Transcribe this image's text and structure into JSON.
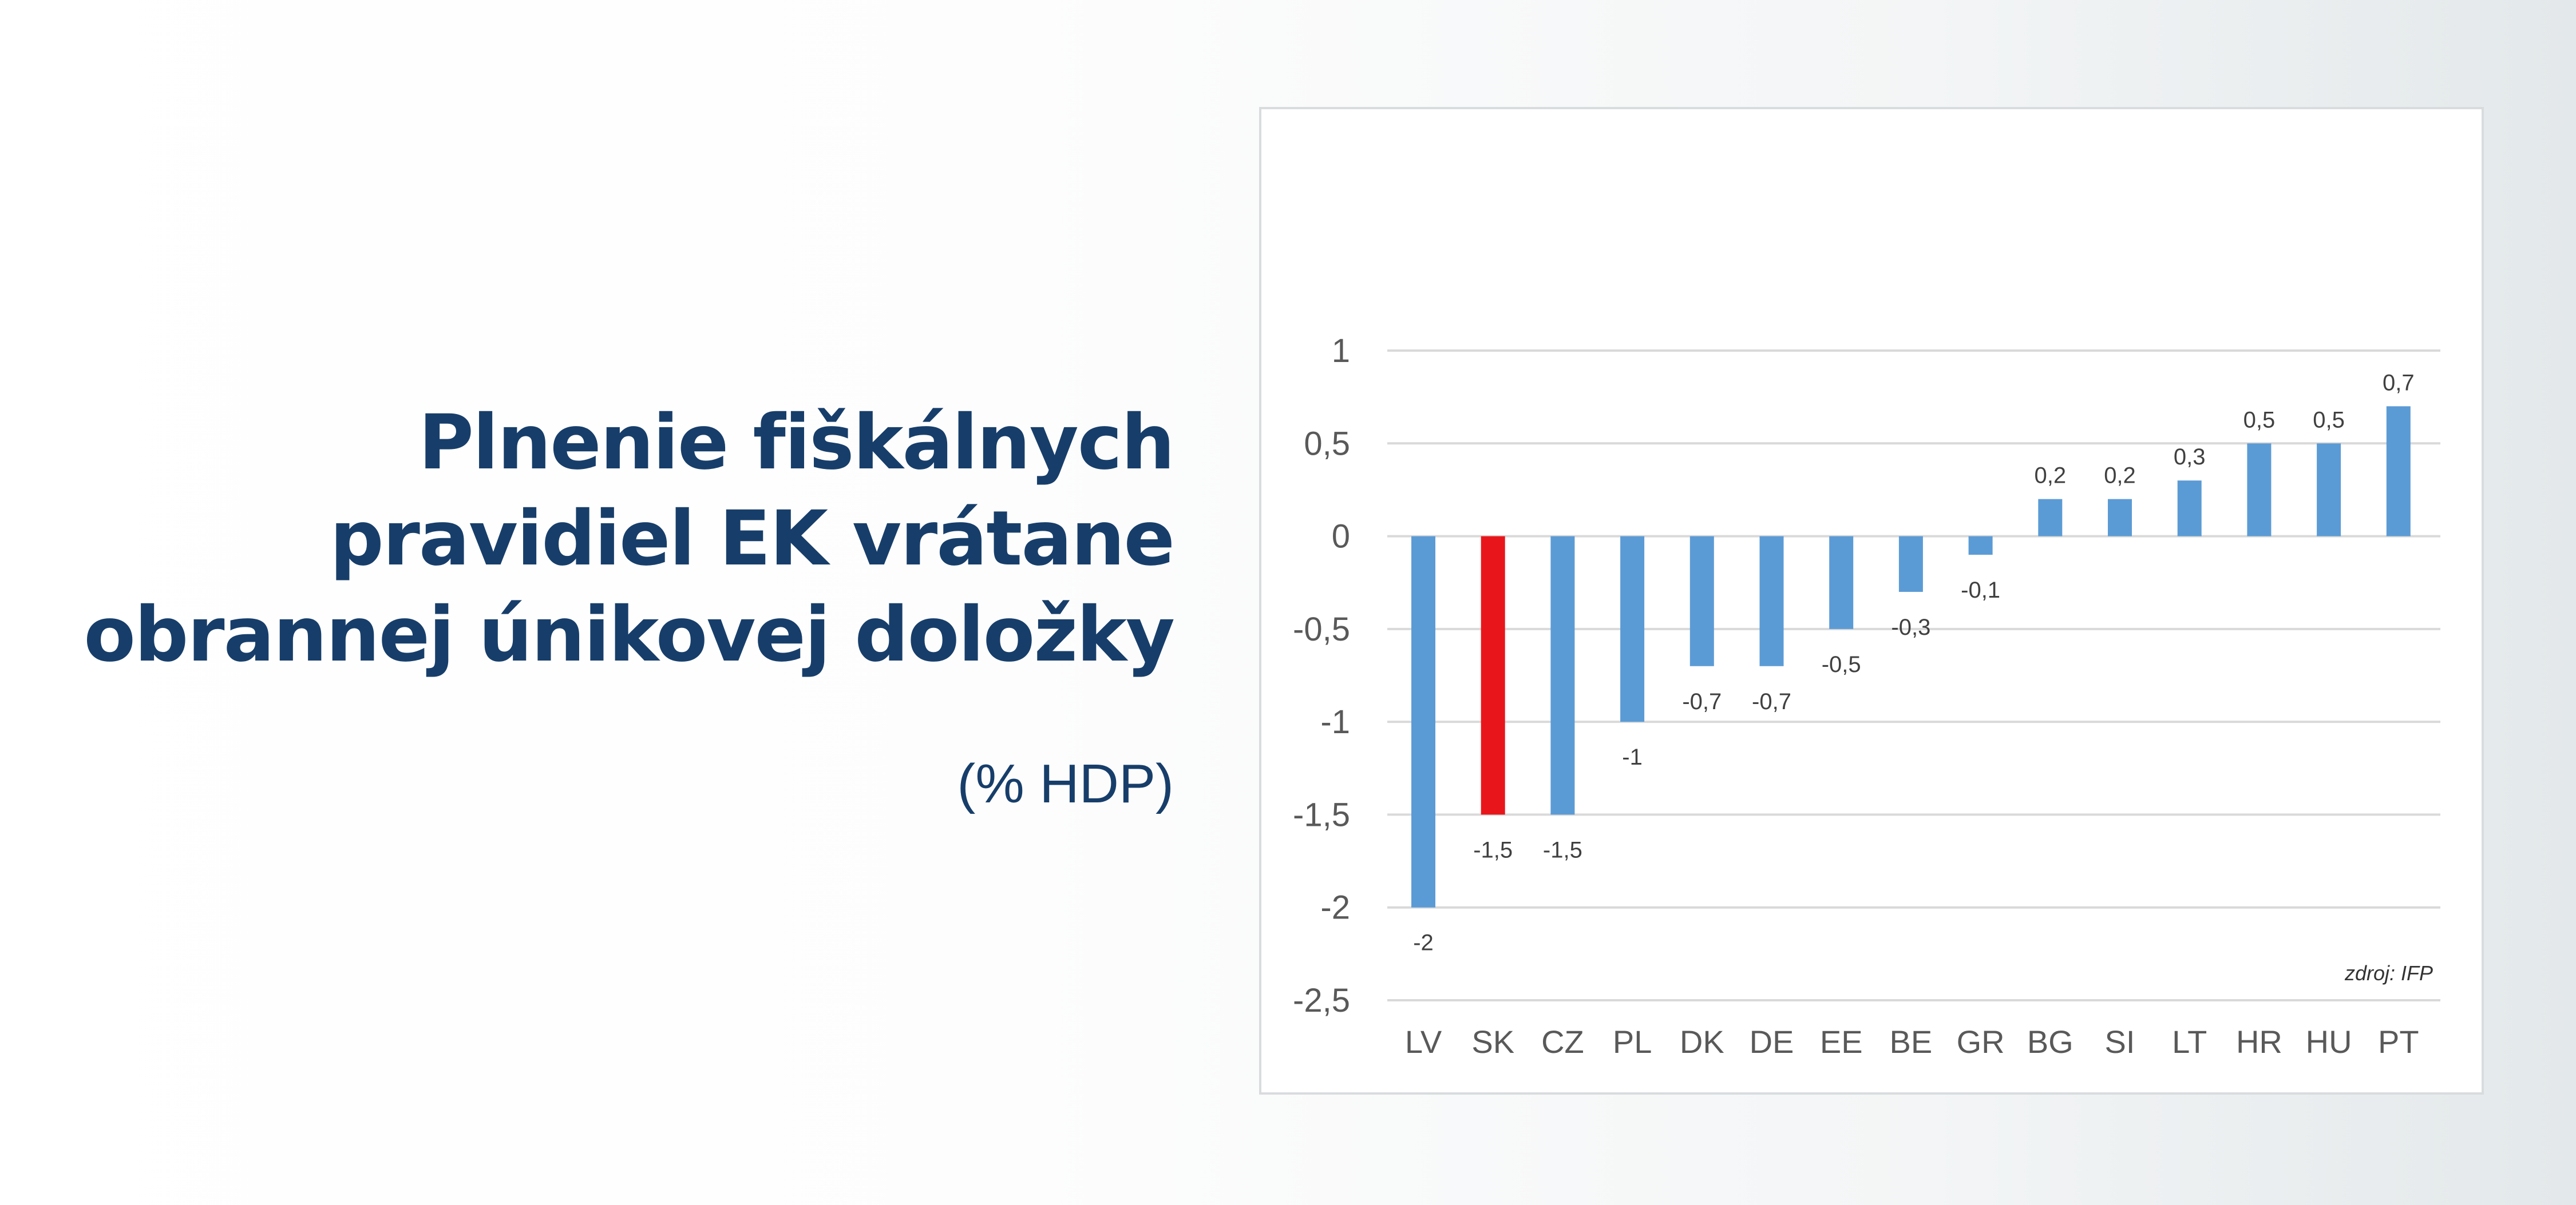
{
  "headline": {
    "line1": "Plnenie fiškálnych",
    "line2": "pravidiel EK vrátane",
    "line3": "obrannej únikovej doložky",
    "subtitle": "(% HDP)"
  },
  "source": "zdroj: IFP",
  "colors": {
    "title": "#173e6a",
    "bar": "#5b9bd5",
    "highlight_bar": "#e8161b",
    "gridline": "#d9d9d9",
    "axis_text": "#595959"
  },
  "chart_data": {
    "type": "bar",
    "categories": [
      "LV",
      "SK",
      "CZ",
      "PL",
      "DK",
      "DE",
      "EE",
      "BE",
      "GR",
      "BG",
      "SI",
      "LT",
      "HR",
      "HU",
      "PT"
    ],
    "values": [
      -2,
      -1.5,
      -1.5,
      -1,
      -0.7,
      -0.7,
      -0.5,
      -0.3,
      -0.1,
      0.2,
      0.2,
      0.3,
      0.5,
      0.5,
      0.7
    ],
    "data_labels": [
      "-2",
      "-1,5",
      "-1,5",
      "-1",
      "-0,7",
      "-0,7",
      "-0,5",
      "-0,3",
      "-0,1",
      "0,2",
      "0,2",
      "0,3",
      "0,5",
      "0,5",
      "0,7"
    ],
    "highlight_category": "SK",
    "ylim": [
      -2.5,
      1
    ],
    "yticks": [
      1,
      0.5,
      0,
      -0.5,
      -1,
      -1.5,
      -2,
      -2.5
    ],
    "ytick_labels": [
      "1",
      "0,5",
      "0",
      "-0,5",
      "-1",
      "-1,5",
      "-2",
      "-2,5"
    ],
    "grid": true,
    "legend": false,
    "xlabel": "",
    "ylabel": ""
  }
}
